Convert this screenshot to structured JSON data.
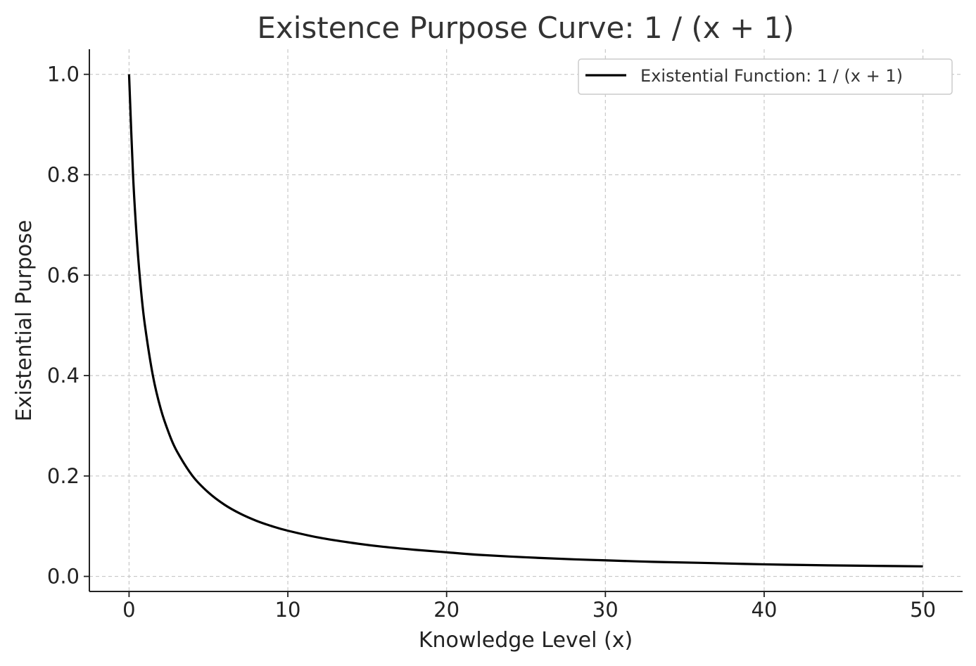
{
  "chart_data": {
    "type": "line",
    "title": "Existence Purpose Curve: 1 / (x + 1)",
    "xlabel": "Knowledge Level (x)",
    "ylabel": "Existential Purpose",
    "xlim": [
      -2.5,
      52.5
    ],
    "ylim": [
      -0.03,
      1.05
    ],
    "xticks": [
      0,
      10,
      20,
      30,
      40,
      50
    ],
    "xtick_labels": [
      "0",
      "10",
      "20",
      "30",
      "40",
      "50"
    ],
    "yticks": [
      0.0,
      0.2,
      0.4,
      0.6,
      0.8,
      1.0
    ],
    "ytick_labels": [
      "0.0",
      "0.2",
      "0.4",
      "0.6",
      "0.8",
      "1.0"
    ],
    "grid": true,
    "legend_position": "top-right",
    "series": [
      {
        "name": "Existential Function: 1 / (x + 1)",
        "color": "#000000",
        "x": [
          0,
          0.25,
          0.5,
          0.75,
          1,
          1.5,
          2,
          2.5,
          3,
          4,
          5,
          6,
          7,
          8,
          9,
          10,
          12,
          14,
          16,
          18,
          20,
          22,
          25,
          28,
          30,
          33,
          36,
          40,
          44,
          47,
          50
        ],
        "y": [
          1.0,
          0.8,
          0.667,
          0.571,
          0.5,
          0.4,
          0.333,
          0.286,
          0.25,
          0.2,
          0.167,
          0.143,
          0.125,
          0.111,
          0.1,
          0.091,
          0.077,
          0.067,
          0.059,
          0.053,
          0.048,
          0.043,
          0.038,
          0.034,
          0.032,
          0.029,
          0.027,
          0.024,
          0.022,
          0.021,
          0.02
        ]
      }
    ]
  }
}
